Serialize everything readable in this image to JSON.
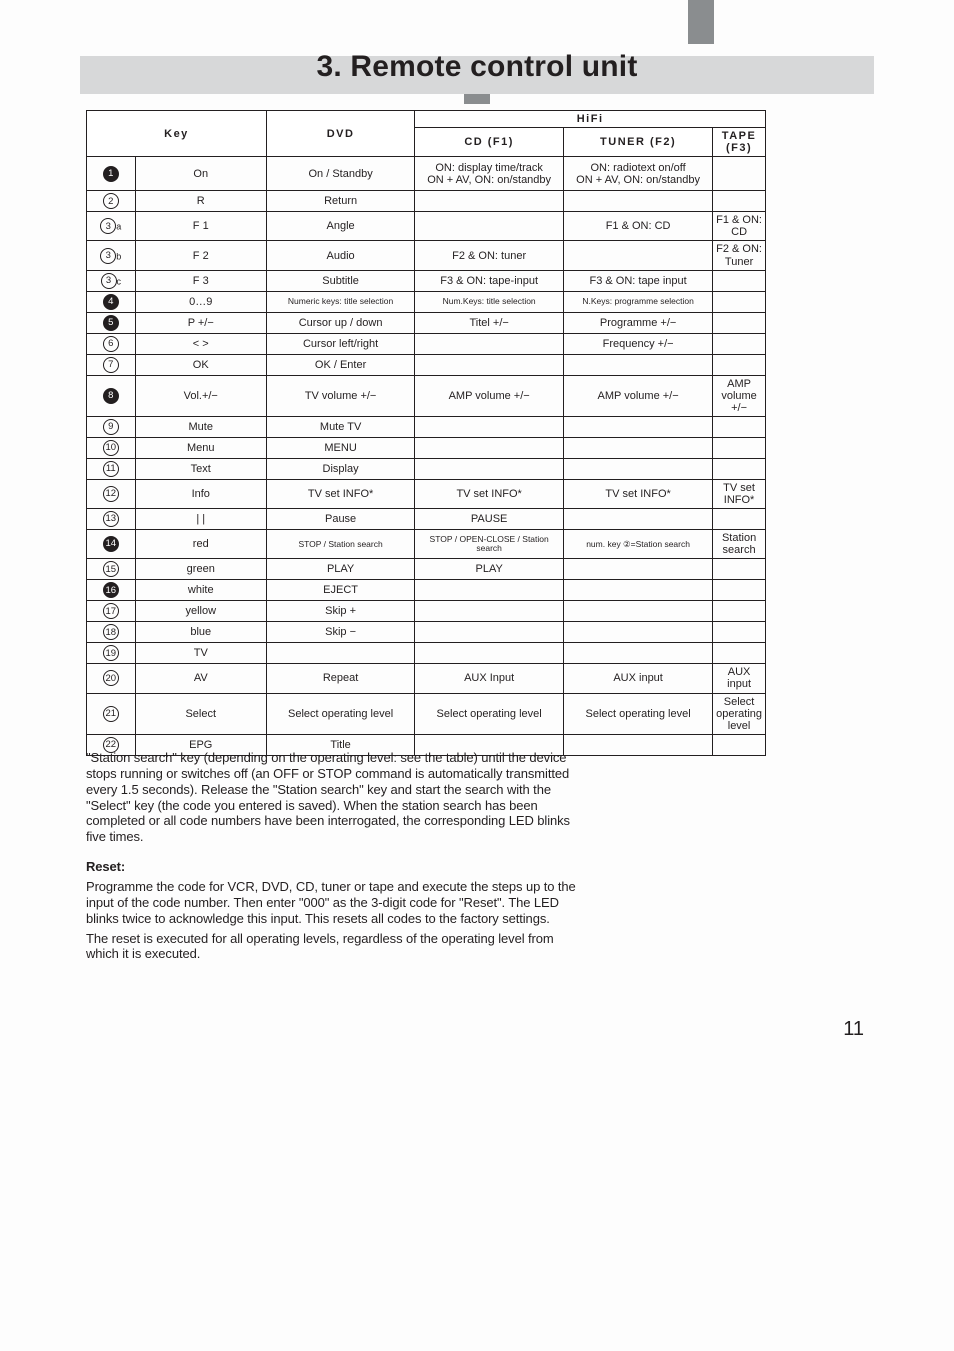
{
  "title": "3. Remote control unit",
  "page_number": "11",
  "table": {
    "header": {
      "key": "Key",
      "dvd": "DVD",
      "hifi": "HiFi",
      "cd": "CD  (F1)",
      "tuner": "TUNER (F2)",
      "tape": "TAPE (F3)"
    },
    "rows": [
      {
        "sym": "1",
        "fill": true,
        "sub": "",
        "key": "On",
        "dvd": "On / Standby",
        "cd": "ON: display time/track\nON + AV, ON: on/standby",
        "tun": "ON: radiotext on/off\nON + AV, ON: on/standby",
        "tap": "",
        "tall": true
      },
      {
        "sym": "2",
        "fill": false,
        "sub": "",
        "key": "R",
        "dvd": "Return",
        "cd": "",
        "tun": "",
        "tap": ""
      },
      {
        "sym": "3",
        "fill": false,
        "sub": "a",
        "key": "F 1",
        "dvd": "Angle",
        "cd": "",
        "tun": "F1 & ON: CD",
        "tap": "F1 & ON: CD"
      },
      {
        "sym": "3",
        "fill": false,
        "sub": "b",
        "key": "F 2",
        "dvd": "Audio",
        "cd": "F2 & ON: tuner",
        "tun": "",
        "tap": "F2 & ON: Tuner"
      },
      {
        "sym": "3",
        "fill": false,
        "sub": "c",
        "key": "F 3",
        "dvd": "Subtitle",
        "cd": "F3 & ON: tape-input",
        "tun": "F3 & ON: tape input",
        "tap": ""
      },
      {
        "sym": "4",
        "fill": true,
        "sub": "",
        "key": "0…9",
        "dvd": "Numeric keys: title selection",
        "cd": "Num.Keys: title selection",
        "tun": "N.Keys: programme selection",
        "tap": "",
        "small": true
      },
      {
        "sym": "5",
        "fill": true,
        "sub": "",
        "key": "P +/−",
        "dvd": "Cursor up / down",
        "cd": "Titel +/−",
        "tun": "Programme +/−",
        "tap": ""
      },
      {
        "sym": "6",
        "fill": false,
        "sub": "",
        "key": "< >",
        "dvd": "Cursor left/right",
        "cd": "",
        "tun": "Frequency +/−",
        "tap": ""
      },
      {
        "sym": "7",
        "fill": false,
        "sub": "",
        "key": "OK",
        "dvd": "OK / Enter",
        "cd": "",
        "tun": "",
        "tap": ""
      },
      {
        "sym": "8",
        "fill": true,
        "sub": "",
        "key": "Vol.+/−",
        "dvd": "TV volume +/−",
        "cd": "AMP volume +/−",
        "tun": "AMP volume +/−",
        "tap": "AMP volume +/−"
      },
      {
        "sym": "9",
        "fill": false,
        "sub": "",
        "key": "Mute",
        "dvd": "Mute TV",
        "cd": "",
        "tun": "",
        "tap": ""
      },
      {
        "sym": "10",
        "fill": false,
        "sub": "",
        "key": "Menu",
        "dvd": "MENU",
        "cd": "",
        "tun": "",
        "tap": ""
      },
      {
        "sym": "11",
        "fill": false,
        "sub": "",
        "key": "Text",
        "dvd": "Display",
        "cd": "",
        "tun": "",
        "tap": ""
      },
      {
        "sym": "12",
        "fill": false,
        "sub": "",
        "key": "Info",
        "dvd": "TV set INFO*",
        "cd": "TV set INFO*",
        "tun": "TV set INFO*",
        "tap": "TV set INFO*"
      },
      {
        "sym": "13",
        "fill": false,
        "sub": "",
        "key": "| |",
        "dvd": "Pause",
        "cd": "PAUSE",
        "tun": "",
        "tap": ""
      },
      {
        "sym": "14",
        "fill": true,
        "sub": "",
        "key": "red",
        "dvd": "STOP / Station search",
        "cd": "STOP / OPEN-CLOSE / Station search",
        "tun": "num. key ②=Station search",
        "tap": "Station search",
        "small": true
      },
      {
        "sym": "15",
        "fill": false,
        "sub": "",
        "key": "green",
        "dvd": "PLAY",
        "cd": "PLAY",
        "tun": "",
        "tap": ""
      },
      {
        "sym": "16",
        "fill": true,
        "sub": "",
        "key": "white",
        "dvd": "EJECT",
        "cd": "",
        "tun": "",
        "tap": ""
      },
      {
        "sym": "17",
        "fill": false,
        "sub": "",
        "key": "yellow",
        "dvd": "Skip +",
        "cd": "",
        "tun": "",
        "tap": ""
      },
      {
        "sym": "18",
        "fill": false,
        "sub": "",
        "key": "blue",
        "dvd": "Skip −",
        "cd": "",
        "tun": "",
        "tap": ""
      },
      {
        "sym": "19",
        "fill": false,
        "sub": "",
        "key": "TV",
        "dvd": "",
        "cd": "",
        "tun": "",
        "tap": ""
      },
      {
        "sym": "20",
        "fill": false,
        "sub": "",
        "key": "AV",
        "dvd": "Repeat",
        "cd": "AUX Input",
        "tun": "AUX input",
        "tap": "AUX input"
      },
      {
        "sym": "21",
        "fill": false,
        "sub": "",
        "key": "Select",
        "dvd": "Select operating level",
        "cd": "Select operating level",
        "tun": "Select operating level",
        "tap": "Select operating level"
      },
      {
        "sym": "22",
        "fill": false,
        "sub": "",
        "key": "EPG",
        "dvd": "Title",
        "cd": "",
        "tun": "",
        "tap": ""
      }
    ]
  },
  "body": {
    "p1": "\"Station search\" key (depending on the operating level: see the table) until the device stops running or switches off (an OFF or STOP command is automatically transmitted every 1.5 seconds). Release the \"Station search\" key and start the search with the \"Select\" key (the code you entered is saved). When the station search has been completed or all code numbers have been interrogated, the corresponding LED blinks five times.",
    "h1": "Reset:",
    "p2": "Programme the code for VCR, DVD, CD, tuner or tape and execute the steps up to the input of the code number. Then enter \"000\" as the 3-digit code for \"Reset\". The LED blinks twice to acknowledge this input. This resets all codes to the factory settings.",
    "p3": "The reset is executed for all operating levels, regardless of the operating level from which it is executed."
  }
}
